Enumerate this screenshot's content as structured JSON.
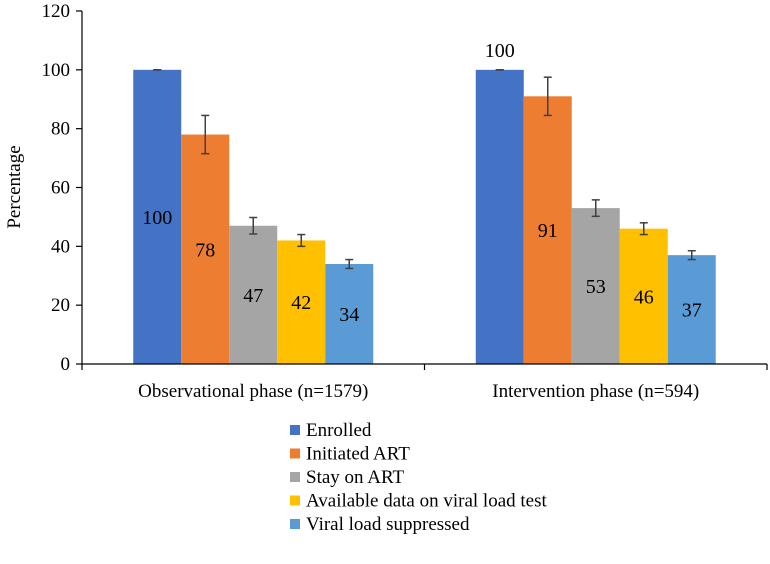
{
  "chart_data": {
    "type": "bar",
    "title": "",
    "xlabel": "",
    "ylabel": "Percentage",
    "ylim": [
      0,
      120
    ],
    "yticks": [
      0,
      20,
      40,
      60,
      80,
      100,
      120
    ],
    "grid": false,
    "legend_position": "bottom",
    "categories": [
      "Observational phase (n=1579)",
      "Intervention phase (n=594)"
    ],
    "series": [
      {
        "name": "Enrolled",
        "color": "#4472C4",
        "values": [
          100,
          100
        ],
        "labels": [
          "100",
          "100"
        ],
        "error": [
          0,
          0
        ]
      },
      {
        "name": "Initiated ART",
        "color": "#ED7D31",
        "values": [
          78,
          91
        ],
        "labels": [
          "78",
          "91"
        ],
        "error": [
          6.5,
          6.5
        ]
      },
      {
        "name": "Stay on ART",
        "color": "#A5A5A5",
        "values": [
          47,
          53
        ],
        "labels": [
          "47",
          "53"
        ],
        "error": [
          2.8,
          2.8
        ]
      },
      {
        "name": "Available data on viral load test",
        "color": "#FFC000",
        "values": [
          42,
          46
        ],
        "labels": [
          "42",
          "46"
        ],
        "error": [
          2,
          2
        ]
      },
      {
        "name": "Viral load suppressed",
        "color": "#5B9BD5",
        "values": [
          34,
          37
        ],
        "labels": [
          "34",
          "37"
        ],
        "error": [
          1.5,
          1.5
        ]
      }
    ]
  }
}
